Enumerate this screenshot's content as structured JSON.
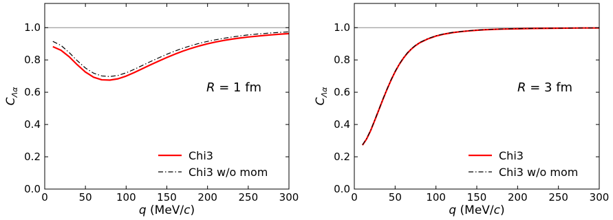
{
  "chart_data": [
    {
      "type": "line",
      "xlabel_var": "q",
      "xlabel_unit_pre": " (MeV/",
      "xlabel_unit_var": "c",
      "xlabel_unit_post": ")",
      "ylabel_main": "C",
      "ylabel_sub": "Λα",
      "annotation_var": "R",
      "annotation_rest": " = 1 fm",
      "xlim": [
        0,
        300
      ],
      "ylim": [
        0.0,
        1.15
      ],
      "xticks": [
        "0",
        "50",
        "100",
        "150",
        "200",
        "250",
        "300"
      ],
      "yticks": [
        "0.0",
        "0.2",
        "0.4",
        "0.6",
        "0.8",
        "1.0"
      ],
      "reference_line_y": 1.0,
      "legend_position": "lower-right",
      "series": [
        {
          "name": "Chi3",
          "color": "#ff0000",
          "style": "solid",
          "x": [
            10,
            20,
            30,
            40,
            50,
            60,
            70,
            80,
            90,
            100,
            110,
            120,
            130,
            140,
            150,
            160,
            170,
            180,
            190,
            200,
            210,
            220,
            230,
            240,
            250,
            260,
            270,
            280,
            290,
            300
          ],
          "y": [
            0.882,
            0.86,
            0.82,
            0.77,
            0.725,
            0.693,
            0.677,
            0.675,
            0.683,
            0.7,
            0.722,
            0.746,
            0.77,
            0.793,
            0.815,
            0.836,
            0.855,
            0.872,
            0.887,
            0.9,
            0.911,
            0.921,
            0.929,
            0.936,
            0.942,
            0.947,
            0.952,
            0.956,
            0.96,
            0.963
          ]
        },
        {
          "name": "Chi3 w/o mom",
          "color": "#000000",
          "style": "dashdot",
          "x": [
            10,
            20,
            30,
            40,
            50,
            60,
            70,
            80,
            90,
            100,
            110,
            120,
            130,
            140,
            150,
            160,
            170,
            180,
            190,
            200,
            210,
            220,
            230,
            240,
            250,
            260,
            270,
            280,
            290,
            300
          ],
          "y": [
            0.915,
            0.89,
            0.846,
            0.795,
            0.75,
            0.718,
            0.701,
            0.697,
            0.704,
            0.72,
            0.742,
            0.766,
            0.79,
            0.813,
            0.835,
            0.855,
            0.873,
            0.889,
            0.903,
            0.915,
            0.925,
            0.934,
            0.942,
            0.949,
            0.955,
            0.96,
            0.964,
            0.968,
            0.971,
            0.974
          ]
        }
      ]
    },
    {
      "type": "line",
      "xlabel_var": "q",
      "xlabel_unit_pre": " (MeV/",
      "xlabel_unit_var": "c",
      "xlabel_unit_post": ")",
      "ylabel_main": "C",
      "ylabel_sub": "Λα",
      "annotation_var": "R",
      "annotation_rest": " = 3 fm",
      "xlim": [
        0,
        300
      ],
      "ylim": [
        0.0,
        1.15
      ],
      "xticks": [
        "0",
        "50",
        "100",
        "150",
        "200",
        "250",
        "300"
      ],
      "yticks": [
        "0.0",
        "0.2",
        "0.4",
        "0.6",
        "0.8",
        "1.0"
      ],
      "reference_line_y": 1.0,
      "legend_position": "lower-right",
      "series": [
        {
          "name": "Chi3",
          "color": "#ff0000",
          "style": "solid",
          "x": [
            10,
            15,
            20,
            25,
            30,
            35,
            40,
            45,
            50,
            55,
            60,
            65,
            70,
            75,
            80,
            90,
            100,
            110,
            120,
            130,
            140,
            150,
            160,
            180,
            200,
            220,
            240,
            260,
            280,
            300
          ],
          "y": [
            0.272,
            0.31,
            0.362,
            0.425,
            0.49,
            0.555,
            0.617,
            0.675,
            0.727,
            0.772,
            0.81,
            0.842,
            0.868,
            0.889,
            0.906,
            0.93,
            0.948,
            0.96,
            0.969,
            0.975,
            0.98,
            0.984,
            0.987,
            0.991,
            0.993,
            0.995,
            0.996,
            0.997,
            0.998,
            0.998
          ]
        },
        {
          "name": "Chi3 w/o mom",
          "color": "#000000",
          "style": "dashdot",
          "x": [
            10,
            15,
            20,
            25,
            30,
            35,
            40,
            45,
            50,
            55,
            60,
            65,
            70,
            75,
            80,
            90,
            100,
            110,
            120,
            130,
            140,
            150,
            160,
            180,
            200,
            220,
            240,
            260,
            280,
            300
          ],
          "y": [
            0.274,
            0.312,
            0.364,
            0.427,
            0.492,
            0.557,
            0.619,
            0.677,
            0.729,
            0.774,
            0.812,
            0.844,
            0.87,
            0.891,
            0.908,
            0.932,
            0.95,
            0.962,
            0.97,
            0.976,
            0.981,
            0.985,
            0.988,
            0.992,
            0.994,
            0.995,
            0.996,
            0.997,
            0.998,
            0.999
          ]
        }
      ]
    }
  ]
}
